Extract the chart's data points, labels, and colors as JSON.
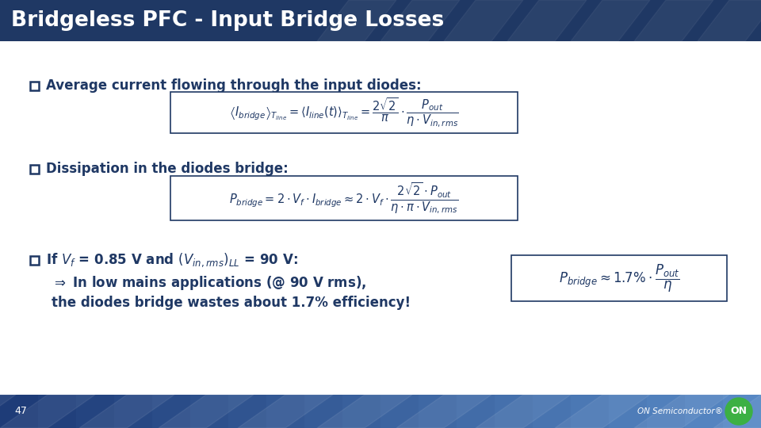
{
  "title": "Bridgeless PFC - Input Bridge Losses",
  "title_bg_color": "#1F3864",
  "title_text_color": "#FFFFFF",
  "slide_bg_color": "#FFFFFF",
  "footer_bg_color": "#2E5090",
  "footer_text": "47",
  "footer_brand": "ON Semiconductor",
  "bullet_color": "#1F3864",
  "text_color": "#1F3864",
  "bullet1": "Average current flowing through the input diodes:",
  "bullet2": "Dissipation in the diodes bridge:",
  "bullet3": "If Vf = 0.85 V and (Vin,rms)LL = 90 V:",
  "arrow_text1": "In low mains applications (@ 90 V rms),",
  "arrow_text2": "the diodes bridge wastes about 1.7% efficiency!",
  "box_border_color": "#1F3864"
}
